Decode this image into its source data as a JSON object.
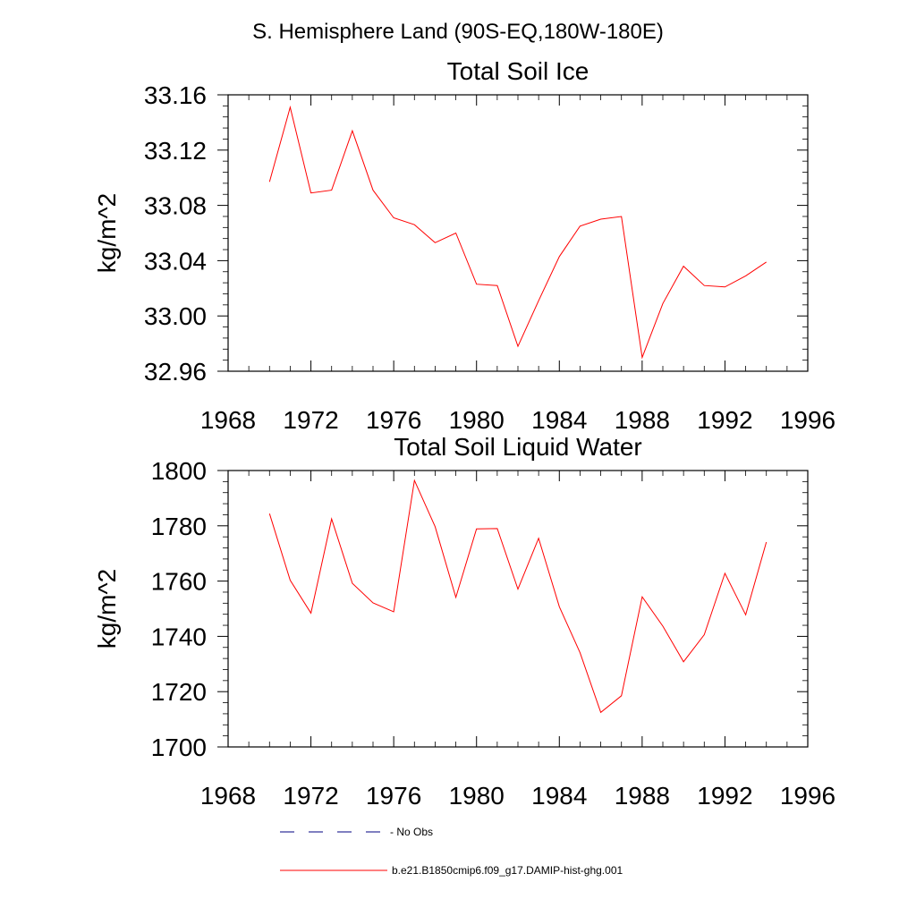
{
  "figure_title": "S. Hemisphere Land (90S-EQ,180W-180E)",
  "legend": {
    "entries": [
      {
        "label": "No Obs",
        "color": "#000080",
        "dash": true
      },
      {
        "label": "b.e21.B1850cmip6.f09_g17.DAMIP-hist-ghg.001",
        "color": "#ff0000",
        "dash": false
      }
    ]
  },
  "chart_data": [
    {
      "type": "line",
      "title": "Total Soil Ice",
      "xlabel": "",
      "ylabel": "kg/m^2",
      "xlim": [
        1968,
        1996
      ],
      "ylim": [
        32.96,
        33.16
      ],
      "xticks": [
        1968,
        1972,
        1976,
        1980,
        1984,
        1988,
        1992,
        1996
      ],
      "xtick_labels": [
        "1968",
        "1972",
        "1976",
        "1980",
        "1984",
        "1988",
        "1992",
        "1996"
      ],
      "yticks": [
        32.96,
        33.0,
        33.04,
        33.08,
        33.12,
        33.16
      ],
      "ytick_labels": [
        "32.96",
        "33.00",
        "33.04",
        "33.08",
        "33.12",
        "33.16"
      ],
      "grid": false,
      "series": [
        {
          "name": "b.e21.B1850cmip6.f09_g17.DAMIP-hist-ghg.001",
          "color": "#ff0000",
          "x": [
            1970,
            1971,
            1972,
            1973,
            1974,
            1975,
            1976,
            1977,
            1978,
            1979,
            1980,
            1981,
            1982,
            1983,
            1984,
            1985,
            1986,
            1987,
            1988,
            1989,
            1990,
            1991,
            1992,
            1993,
            1994
          ],
          "y": [
            33.097,
            33.151,
            33.089,
            33.091,
            33.134,
            33.091,
            33.071,
            33.066,
            33.053,
            33.06,
            33.023,
            33.022,
            32.978,
            33.011,
            33.043,
            33.065,
            33.07,
            33.072,
            32.97,
            33.009,
            33.036,
            33.022,
            33.021,
            33.029,
            33.039
          ]
        }
      ]
    },
    {
      "type": "line",
      "title": "Total Soil Liquid Water",
      "xlabel": "",
      "ylabel": "kg/m^2",
      "xlim": [
        1968,
        1996
      ],
      "ylim": [
        1700,
        1800
      ],
      "xticks": [
        1968,
        1972,
        1976,
        1980,
        1984,
        1988,
        1992,
        1996
      ],
      "xtick_labels": [
        "1968",
        "1972",
        "1976",
        "1980",
        "1984",
        "1988",
        "1992",
        "1996"
      ],
      "yticks": [
        1700,
        1720,
        1740,
        1760,
        1780,
        1800
      ],
      "ytick_labels": [
        "1700",
        "1720",
        "1740",
        "1760",
        "1780",
        "1800"
      ],
      "grid": false,
      "series": [
        {
          "name": "b.e21.B1850cmip6.f09_g17.DAMIP-hist-ghg.001",
          "color": "#ff0000",
          "x": [
            1970,
            1971,
            1972,
            1973,
            1974,
            1975,
            1976,
            1977,
            1978,
            1979,
            1980,
            1981,
            1982,
            1983,
            1984,
            1985,
            1986,
            1987,
            1988,
            1989,
            1990,
            1991,
            1992,
            1993,
            1994
          ],
          "y": [
            1784.4,
            1760.3,
            1748.4,
            1782.5,
            1759.2,
            1752.1,
            1748.9,
            1796.4,
            1779.7,
            1754.1,
            1778.9,
            1779.0,
            1757.1,
            1775.5,
            1750.7,
            1734.1,
            1712.5,
            1718.5,
            1754.3,
            1743.7,
            1730.8,
            1740.6,
            1762.8,
            1747.8,
            1774.1
          ]
        }
      ]
    }
  ]
}
